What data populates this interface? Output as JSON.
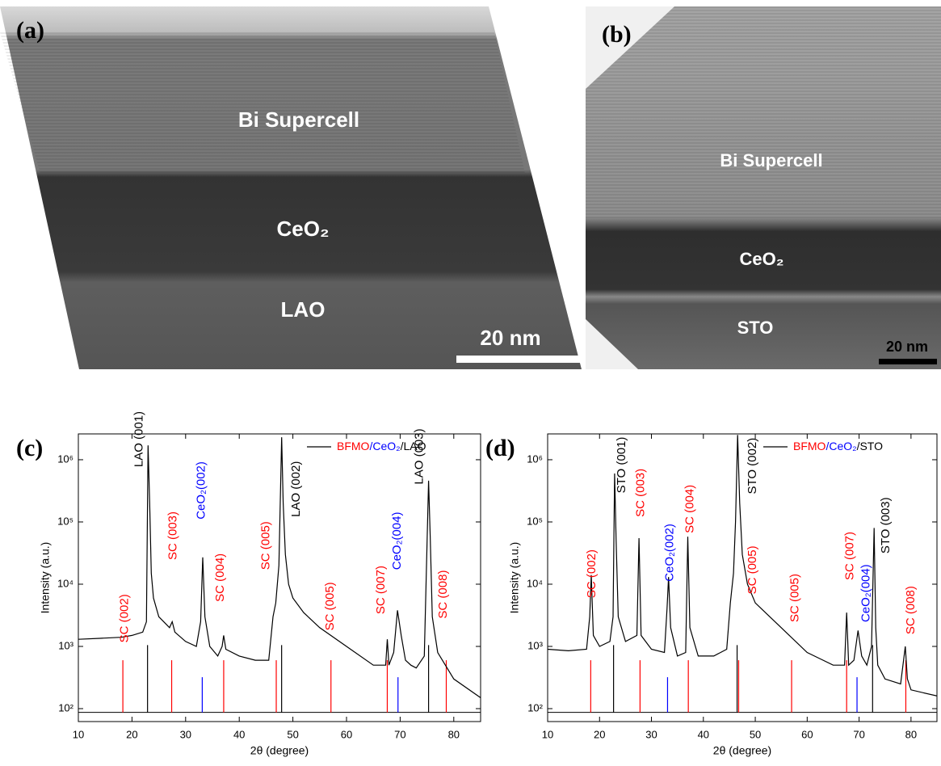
{
  "panels": [
    {
      "label": "(a)",
      "texts": [
        "Bi Supercell",
        "CeO₂",
        "LAO"
      ],
      "scale_bar": "20 nm"
    },
    {
      "label": "(b)",
      "texts": [
        "Bi Supercell",
        "CeO₂",
        "STO"
      ],
      "scale_bar": "20 nm"
    }
  ],
  "chart_data": [
    {
      "type": "line",
      "panel_label": "(c)",
      "x_label": "2θ (degree)",
      "y_label": "Intensity (a.u.)",
      "log_y": true,
      "xlim": [
        10,
        85
      ],
      "xticks": [
        10,
        20,
        30,
        40,
        50,
        60,
        70,
        80
      ],
      "ylim": [
        62,
        2600000
      ],
      "yticks": [
        {
          "value": 100,
          "label": "10²"
        },
        {
          "value": 1000,
          "label": "10³"
        },
        {
          "value": 10000,
          "label": "10⁴"
        },
        {
          "value": 100000,
          "label": "10⁵"
        },
        {
          "value": 1000000,
          "label": "10⁶"
        }
      ],
      "legend": [
        {
          "text": "BFMO",
          "color": "#ff0000"
        },
        {
          "text": "/CeO₂",
          "color": "#0000ff"
        },
        {
          "text": "/LAO",
          "color": "#000000"
        }
      ],
      "series": [
        {
          "color": "#000000",
          "x": [
            10,
            14,
            18,
            20,
            22,
            22.7,
            23.0,
            23.3,
            23.6,
            24,
            25,
            27,
            27.5,
            28,
            30,
            32,
            32.8,
            33.2,
            33.6,
            34.5,
            36,
            36.8,
            37.1,
            37.5,
            40,
            43,
            45.5,
            46.3,
            46.8,
            47.4,
            47.9,
            48.2,
            48.6,
            49.2,
            50,
            52,
            55,
            60,
            65,
            67.3,
            67.6,
            67.9,
            68.8,
            69.5,
            70.2,
            71,
            72,
            73,
            74.5,
            75.0,
            75.3,
            75.6,
            76,
            77,
            80,
            85
          ],
          "values": [
            1300,
            1350,
            1400,
            1500,
            1700,
            2500,
            1700000,
            200000,
            15000,
            6000,
            3000,
            2000,
            2500,
            1700,
            1200,
            1000,
            2500,
            27000,
            3000,
            1000,
            700,
            1000,
            1500,
            900,
            700,
            600,
            600,
            3000,
            5000,
            20000,
            2300000,
            200000,
            30000,
            10000,
            6000,
            3500,
            2000,
            1000,
            500,
            500,
            1300,
            500,
            800,
            3800,
            1500,
            600,
            500,
            450,
            700,
            40000,
            460000,
            60000,
            3000,
            800,
            300,
            150
          ]
        }
      ],
      "reference_baseline": 87,
      "reference_lines": {
        "x": [
          18.3,
          22.9,
          27.4,
          33.1,
          37.1,
          46.9,
          47.9,
          57.1,
          67.6,
          69.6,
          75.3,
          78.6
        ],
        "values": [
          600,
          1050,
          600,
          320,
          600,
          600,
          1050,
          600,
          600,
          320,
          1050,
          600
        ],
        "colors": [
          "#ff0000",
          "#000000",
          "#ff0000",
          "#0000ff",
          "#ff0000",
          "#ff0000",
          "#000000",
          "#ff0000",
          "#ff0000",
          "#0000ff",
          "#000000",
          "#ff0000"
        ]
      },
      "annotations": [
        {
          "text": "SC (002)",
          "color": "#ff0000",
          "x": 18.7,
          "y": 1150
        },
        {
          "text": "LAO (001)",
          "color": "#000000",
          "x": 21.4,
          "y": 760000
        },
        {
          "text": "SC (003)",
          "color": "#ff0000",
          "x": 27.7,
          "y": 24500
        },
        {
          "text": "CeO₂(002)",
          "color": "#0000ff",
          "x": 33.0,
          "y": 110000
        },
        {
          "text": "SC (004)",
          "color": "#ff0000",
          "x": 36.5,
          "y": 5200
        },
        {
          "text": "SC (005)",
          "color": "#ff0000",
          "x": 45.0,
          "y": 17000
        },
        {
          "text": "LAO (002)",
          "color": "#000000",
          "x": 50.7,
          "y": 120000
        },
        {
          "text": "SC (005)",
          "color": "#ff0000",
          "x": 57.0,
          "y": 1800
        },
        {
          "text": "SC (007)",
          "color": "#ff0000",
          "x": 66.5,
          "y": 3300
        },
        {
          "text": "CeO₂(004)",
          "color": "#0000ff",
          "x": 69.5,
          "y": 17000
        },
        {
          "text": "LAO (003)",
          "color": "#000000",
          "x": 73.6,
          "y": 400000
        },
        {
          "text": "SC (008)",
          "color": "#ff0000",
          "x": 78.1,
          "y": 2800
        }
      ]
    },
    {
      "type": "line",
      "panel_label": "(d)",
      "x_label": "2θ (degree)",
      "y_label": "Intensity (a.u.)",
      "log_y": true,
      "xlim": [
        10,
        85
      ],
      "xticks": [
        10,
        20,
        30,
        40,
        50,
        60,
        70,
        80
      ],
      "ylim": [
        62,
        2600000
      ],
      "yticks": [
        {
          "value": 100,
          "label": "10²"
        },
        {
          "value": 1000,
          "label": "10³"
        },
        {
          "value": 10000,
          "label": "10⁴"
        },
        {
          "value": 100000,
          "label": "10⁵"
        },
        {
          "value": 1000000,
          "label": "10⁶"
        }
      ],
      "legend": [
        {
          "text": "BFMO",
          "color": "#ff0000"
        },
        {
          "text": "/CeO₂",
          "color": "#0000ff"
        },
        {
          "text": "/STO",
          "color": "#000000"
        }
      ],
      "series": [
        {
          "color": "#000000",
          "x": [
            10,
            14,
            17.5,
            18.1,
            18.4,
            18.8,
            20,
            22,
            22.6,
            22.9,
            23.2,
            23.6,
            25,
            27.2,
            27.6,
            28,
            30,
            32.5,
            33.0,
            33.3,
            33.7,
            35,
            36.6,
            37.0,
            37.4,
            39,
            42,
            44.5,
            45.2,
            45.8,
            46.2,
            46.6,
            47.0,
            47.5,
            48.5,
            50,
            55,
            60,
            65,
            67.2,
            67.6,
            68,
            69,
            69.8,
            70.5,
            71.5,
            72.4,
            72.9,
            73.2,
            73.6,
            75,
            78,
            78.9,
            79.3,
            80,
            85
          ],
          "values": [
            900,
            850,
            900,
            3000,
            14000,
            1500,
            1000,
            1200,
            3000,
            600000,
            50000,
            3000,
            1200,
            1500,
            55000,
            1500,
            900,
            800,
            4000,
            13000,
            2000,
            700,
            800,
            58000,
            2000,
            700,
            700,
            900,
            5000,
            15000,
            100000,
            2500000,
            200000,
            30000,
            10000,
            5000,
            2000,
            800,
            500,
            500,
            3500,
            500,
            600,
            1800,
            700,
            500,
            1000,
            80000,
            2000,
            500,
            300,
            250,
            1000,
            300,
            200,
            160
          ]
        }
      ],
      "reference_baseline": 87,
      "reference_lines": {
        "x": [
          18.3,
          22.7,
          27.8,
          33.1,
          37.1,
          46.5,
          46.8,
          57.0,
          67.6,
          69.6,
          72.6,
          79.0
        ],
        "values": [
          600,
          1050,
          600,
          320,
          600,
          1050,
          600,
          600,
          600,
          320,
          1050,
          600
        ],
        "colors": [
          "#ff0000",
          "#000000",
          "#ff0000",
          "#0000ff",
          "#ff0000",
          "#000000",
          "#ff0000",
          "#ff0000",
          "#ff0000",
          "#0000ff",
          "#000000",
          "#ff0000"
        ]
      },
      "annotations": [
        {
          "text": "SC (002)",
          "color": "#ff0000",
          "x": 18.6,
          "y": 6000
        },
        {
          "text": "STO (001)",
          "color": "#000000",
          "x": 24.3,
          "y": 290000
        },
        {
          "text": "SC (003)",
          "color": "#ff0000",
          "x": 28.0,
          "y": 120000
        },
        {
          "text": "CeO₂(002)",
          "color": "#0000ff",
          "x": 33.6,
          "y": 11000
        },
        {
          "text": "SC (004)",
          "color": "#ff0000",
          "x": 37.5,
          "y": 66000
        },
        {
          "text": "SC (005)",
          "color": "#ff0000",
          "x": 49.5,
          "y": 6900
        },
        {
          "text": "STO (002)",
          "color": "#000000",
          "x": 49.5,
          "y": 280000
        },
        {
          "text": "SC (005)",
          "color": "#ff0000",
          "x": 57.7,
          "y": 2450
        },
        {
          "text": "SC (007)",
          "color": "#ff0000",
          "x": 68.3,
          "y": 11600
        },
        {
          "text": "CeO₂(004)",
          "color": "#0000ff",
          "x": 71.4,
          "y": 2450
        },
        {
          "text": "STO (003)",
          "color": "#000000",
          "x": 75.2,
          "y": 31000
        },
        {
          "text": "SC (008)",
          "color": "#ff0000",
          "x": 80.0,
          "y": 1560
        }
      ]
    }
  ]
}
